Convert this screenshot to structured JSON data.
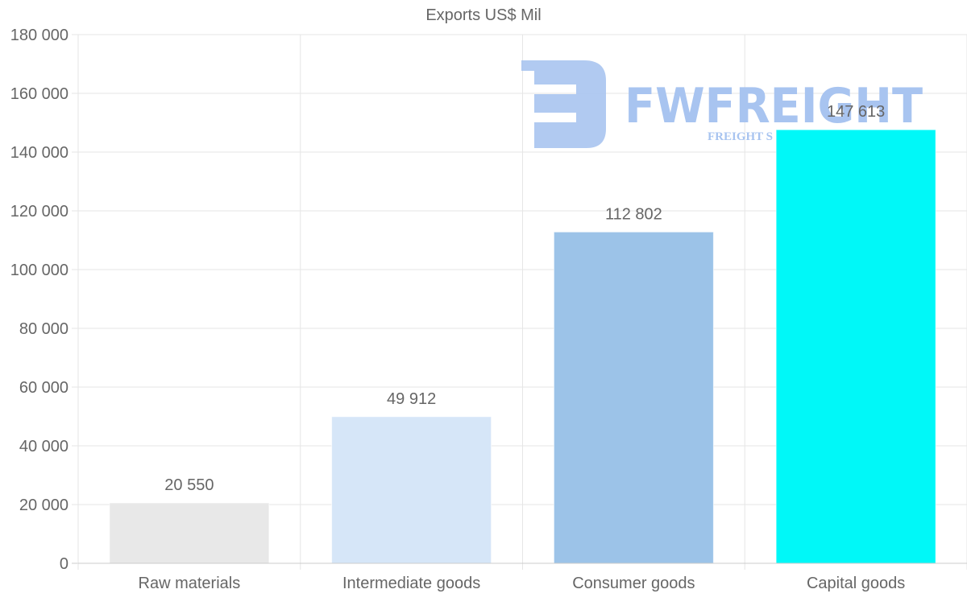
{
  "chart_data": {
    "type": "bar",
    "title": "Exports US$ Mil",
    "xlabel": "",
    "ylabel": "",
    "categories": [
      "Raw materials",
      "Intermediate goods",
      "Consumer goods",
      "Capital goods"
    ],
    "values": [
      20550,
      49912,
      112802,
      147613
    ],
    "value_labels": [
      "20 550",
      "49 912",
      "112 802",
      "147 613"
    ],
    "colors": [
      "#e8e8e8",
      "#d6e6f8",
      "#9cc3e8",
      "#00f8f8"
    ],
    "ylim": [
      0,
      180000
    ],
    "yticks": [
      0,
      20000,
      40000,
      60000,
      80000,
      100000,
      120000,
      140000,
      160000,
      180000
    ],
    "ytick_labels": [
      "0",
      "20 000",
      "40 000",
      "60 000",
      "80 000",
      "100 000",
      "120 000",
      "140 000",
      "160 000",
      "180 000"
    ],
    "grid": true,
    "legend": "none"
  },
  "watermark": {
    "brand": "FWFREIGHT",
    "tagline": "FREIGHT S",
    "color": "#a8c4f0"
  }
}
